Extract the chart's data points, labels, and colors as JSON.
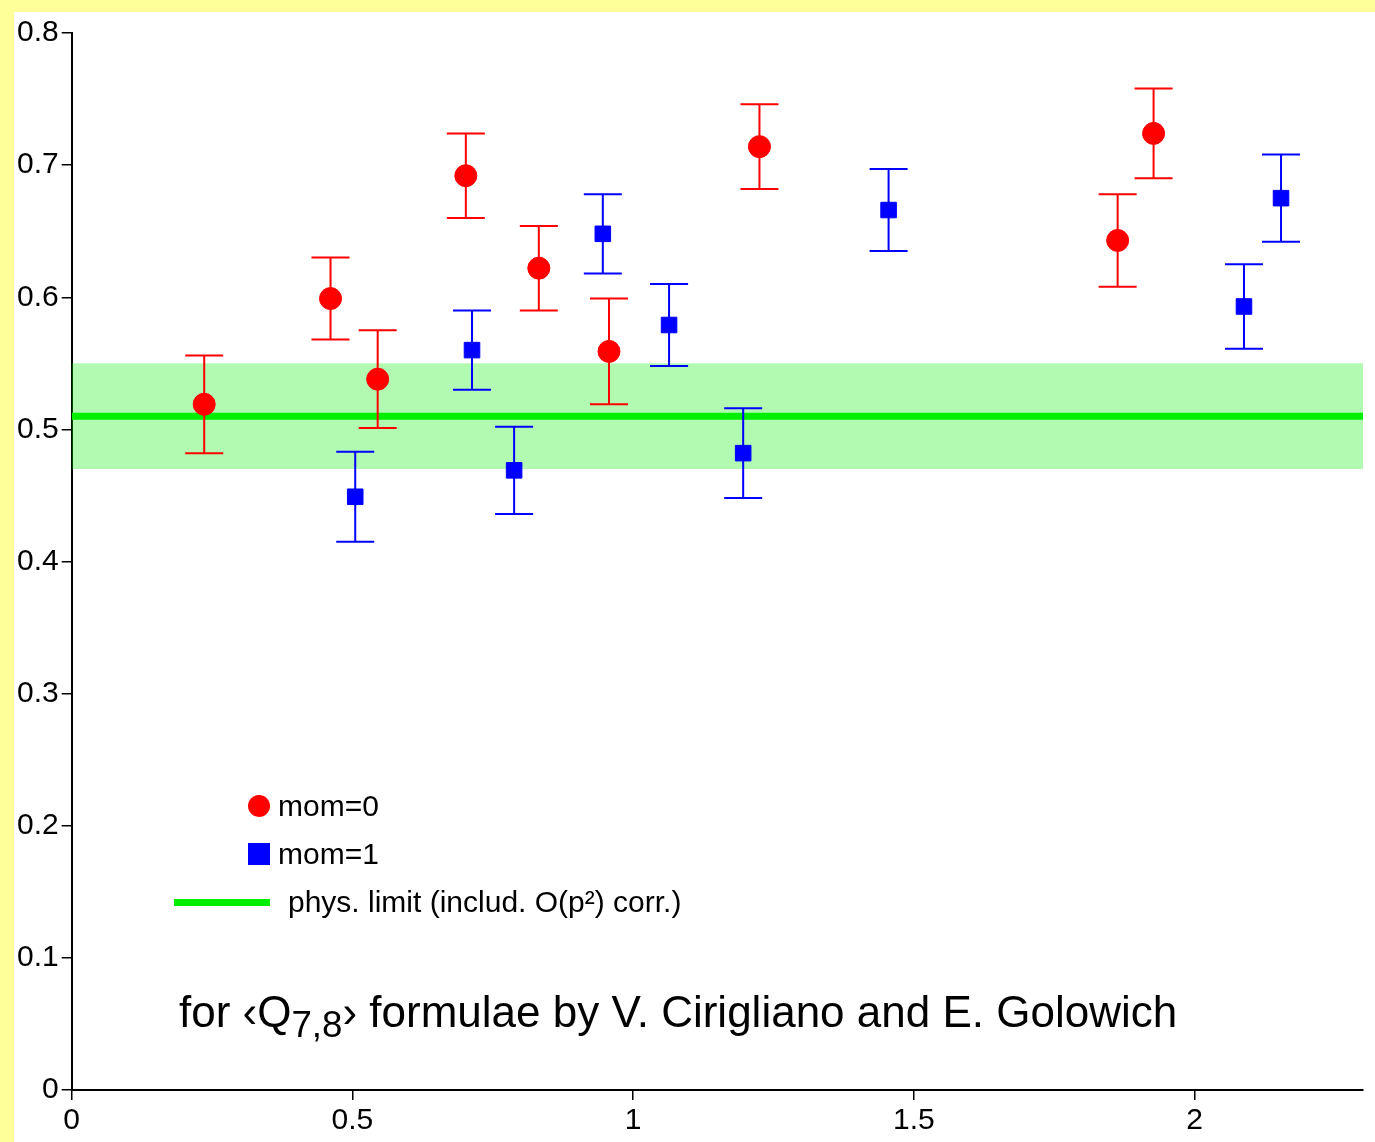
{
  "chart_data": {
    "type": "scatter",
    "xlim": [
      0,
      2.3
    ],
    "ylim": [
      0,
      0.8
    ],
    "xticks": [
      0,
      0.5,
      1,
      1.5,
      2
    ],
    "yticks": [
      0,
      0.1,
      0.2,
      0.3,
      0.4,
      0.5,
      0.6,
      0.7,
      0.8
    ],
    "grid": false,
    "legend": "bottom left",
    "series": [
      {
        "name": "mom=0",
        "color": "#ff0000",
        "marker": "circle",
        "x": [
          0.236,
          0.461,
          0.545,
          0.702,
          0.832,
          0.957,
          1.225,
          1.863,
          1.927
        ],
        "values": [
          0.519,
          0.599,
          0.538,
          0.692,
          0.622,
          0.559,
          0.714,
          0.643,
          0.724
        ],
        "errors": [
          0.037,
          0.031,
          0.037,
          0.032,
          0.032,
          0.04,
          0.032,
          0.035,
          0.034
        ]
      },
      {
        "name": "mom=1",
        "color": "#0000ff",
        "marker": "square",
        "x": [
          0.505,
          0.713,
          0.788,
          0.946,
          1.064,
          1.196,
          1.455,
          2.088,
          2.154
        ],
        "values": [
          0.449,
          0.56,
          0.469,
          0.648,
          0.579,
          0.482,
          0.666,
          0.593,
          0.675
        ],
        "errors": [
          0.034,
          0.03,
          0.033,
          0.03,
          0.031,
          0.034,
          0.031,
          0.032,
          0.033
        ]
      },
      {
        "name": "phys. limit (includ. O(p²) corr.)",
        "type": "line",
        "color": "#00ee00",
        "marker": "none",
        "x": [
          0,
          2.3
        ],
        "values": [
          0.51,
          0.51
        ]
      }
    ],
    "bands": [
      {
        "axis": "y",
        "from": 0.47,
        "to": 0.55,
        "color": "#00ee00"
      }
    ],
    "annotations": [
      "for ‹Q$_{7,8}$› formulae by V. Cirigliano and E. Golowich"
    ]
  }
}
